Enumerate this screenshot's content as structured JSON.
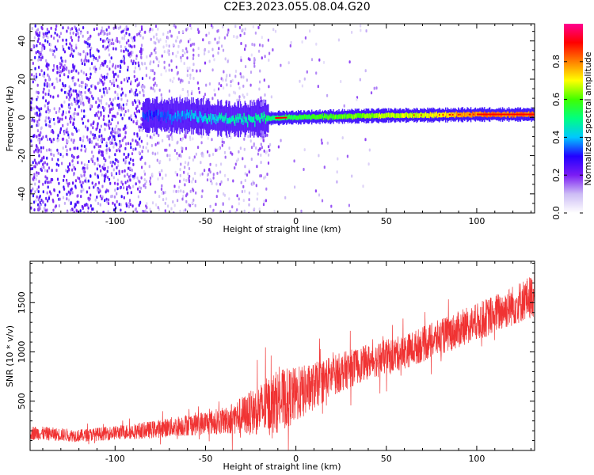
{
  "figure_title": "C2E3.2023.055.08.04.G20",
  "chart_data": [
    {
      "type": "heatmap",
      "xlabel": "Height of straight line (km)",
      "ylabel": "Frequency (Hz)",
      "xlim": [
        -147,
        132
      ],
      "ylim": [
        -50,
        49
      ],
      "xticks": [
        -100,
        -50,
        0,
        50,
        100
      ],
      "yticks": [
        40,
        20,
        0,
        -20,
        -40
      ],
      "colorbar": {
        "label": "Normalized spectral amplitude",
        "range": [
          0,
          1
        ],
        "ticks": [
          0.0,
          0.2,
          0.4,
          0.6,
          0.8
        ],
        "colormap": [
          "#ffffff",
          "#cdbdf5",
          "#7b1cf4",
          "#2200ff",
          "#00c8ff",
          "#00ff80",
          "#40ff00",
          "#ffff00",
          "#ff8000",
          "#ff0000",
          "#ff0090"
        ]
      },
      "features": {
        "noise_band_x": [
          -147,
          -15
        ],
        "central_ridge": [
          {
            "x": -85,
            "y": 1.0,
            "amplitude": 0.3
          },
          {
            "x": -60,
            "y": 1.0,
            "amplitude": 0.4
          },
          {
            "x": -35,
            "y": -1.0,
            "amplitude": 0.45
          },
          {
            "x": -15,
            "y": -0.5,
            "amplitude": 0.5
          },
          {
            "x": 0,
            "y": 0.0,
            "amplitude": 0.55
          },
          {
            "x": 25,
            "y": 0.5,
            "amplitude": 0.6
          },
          {
            "x": 50,
            "y": 1.0,
            "amplitude": 0.65
          },
          {
            "x": 75,
            "y": 1.2,
            "amplitude": 0.7
          },
          {
            "x": 100,
            "y": 1.5,
            "amplitude": 0.8
          },
          {
            "x": 132,
            "y": 1.5,
            "amplitude": 0.8
          }
        ]
      }
    },
    {
      "type": "line",
      "xlabel": "Height of straight line (km)",
      "ylabel": "SNR (10 * v/v)",
      "xlim": [
        -147,
        132
      ],
      "ylim": [
        0,
        1920
      ],
      "xticks": [
        -100,
        -50,
        0,
        50,
        100
      ],
      "yticks": [
        500,
        1000,
        1500
      ],
      "line_color": "#f03333",
      "series": [
        {
          "envelope_x": [
            -147,
            -120,
            -100,
            -80,
            -60,
            -40,
            -25,
            -15,
            -10,
            0,
            10,
            20,
            40,
            60,
            80,
            100,
            120,
            132
          ],
          "mean_y": [
            180,
            150,
            180,
            210,
            260,
            300,
            380,
            450,
            500,
            560,
            650,
            760,
            900,
            1000,
            1150,
            1300,
            1470,
            1580
          ],
          "spread_y": [
            90,
            80,
            90,
            110,
            140,
            170,
            280,
            380,
            400,
            360,
            300,
            260,
            220,
            220,
            230,
            240,
            260,
            280
          ]
        }
      ]
    }
  ]
}
